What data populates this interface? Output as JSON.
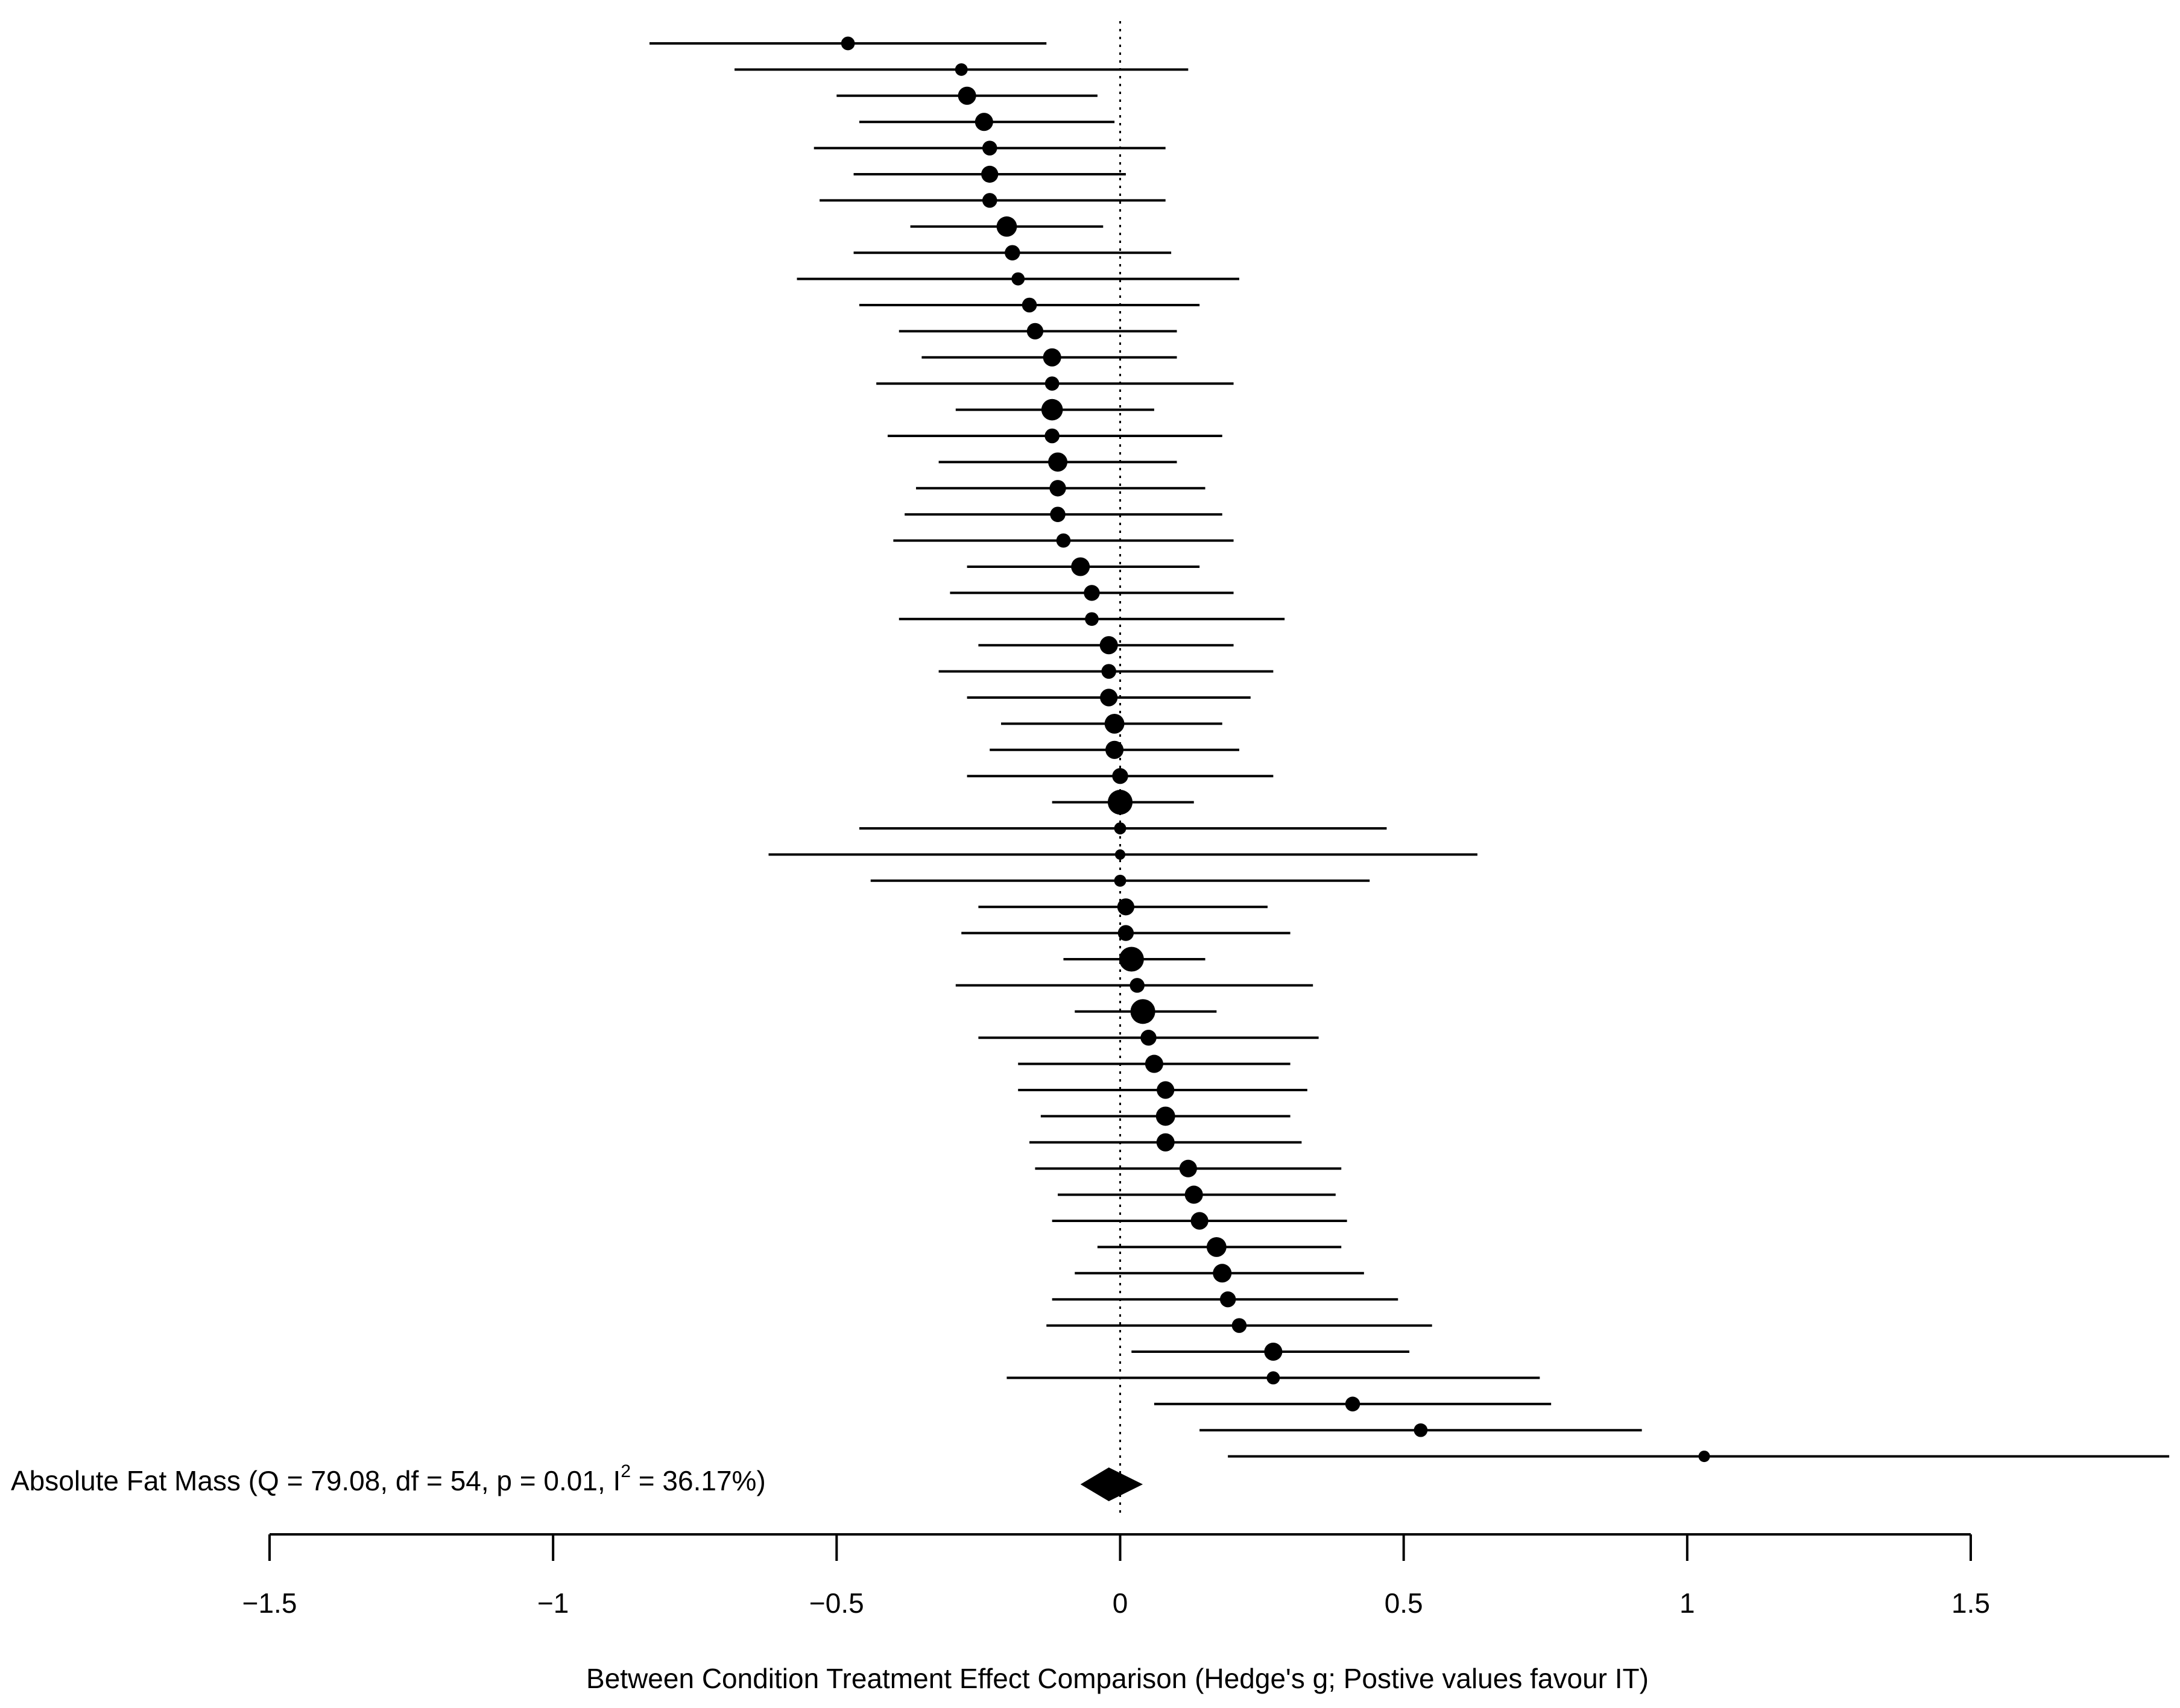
{
  "chart_data": {
    "type": "forest",
    "xlabel": "Between Condition Treatment Effect Comparison (Hedge's g; Postive values favour IT)",
    "xlim": [
      -1.5,
      1.5
    ],
    "xticks": [
      -1.5,
      -1,
      -0.5,
      0,
      0.5,
      1,
      1.5
    ],
    "xtick_labels": [
      "−1.5",
      "−1",
      "−0.5",
      "0",
      "0.5",
      "1",
      "1.5"
    ],
    "reference_line": 0,
    "summary": {
      "label_main": "Absolute Fat Mass (Q = 79.08, df = 54, p = 0.01, I",
      "label_sup": "2",
      "label_tail": " = 36.17%)",
      "estimate": -0.02,
      "ci": [
        -0.07,
        0.04
      ]
    },
    "studies": [
      {
        "est": -0.48,
        "lo": -0.83,
        "hi": -0.13,
        "w": 1.6
      },
      {
        "est": -0.28,
        "lo": -0.68,
        "hi": 0.12,
        "w": 1.4
      },
      {
        "est": -0.27,
        "lo": -0.5,
        "hi": -0.04,
        "w": 2.4
      },
      {
        "est": -0.24,
        "lo": -0.46,
        "hi": -0.01,
        "w": 2.4
      },
      {
        "est": -0.23,
        "lo": -0.54,
        "hi": 0.08,
        "w": 1.8
      },
      {
        "est": -0.23,
        "lo": -0.47,
        "hi": 0.01,
        "w": 2.2
      },
      {
        "est": -0.23,
        "lo": -0.53,
        "hi": 0.08,
        "w": 1.8
      },
      {
        "est": -0.2,
        "lo": -0.37,
        "hi": -0.03,
        "w": 2.8
      },
      {
        "est": -0.19,
        "lo": -0.47,
        "hi": 0.09,
        "w": 1.9
      },
      {
        "est": -0.18,
        "lo": -0.57,
        "hi": 0.21,
        "w": 1.5
      },
      {
        "est": -0.16,
        "lo": -0.46,
        "hi": 0.14,
        "w": 1.8
      },
      {
        "est": -0.15,
        "lo": -0.39,
        "hi": 0.1,
        "w": 2.1
      },
      {
        "est": -0.12,
        "lo": -0.35,
        "hi": 0.1,
        "w": 2.4
      },
      {
        "est": -0.12,
        "lo": -0.43,
        "hi": 0.2,
        "w": 1.7
      },
      {
        "est": -0.12,
        "lo": -0.29,
        "hi": 0.06,
        "w": 3.0
      },
      {
        "est": -0.12,
        "lo": -0.41,
        "hi": 0.18,
        "w": 1.8
      },
      {
        "est": -0.11,
        "lo": -0.32,
        "hi": 0.1,
        "w": 2.6
      },
      {
        "est": -0.11,
        "lo": -0.36,
        "hi": 0.15,
        "w": 2.1
      },
      {
        "est": -0.11,
        "lo": -0.38,
        "hi": 0.18,
        "w": 1.9
      },
      {
        "est": -0.1,
        "lo": -0.4,
        "hi": 0.2,
        "w": 1.7
      },
      {
        "est": -0.07,
        "lo": -0.27,
        "hi": 0.14,
        "w": 2.5
      },
      {
        "est": -0.05,
        "lo": -0.3,
        "hi": 0.2,
        "w": 2.0
      },
      {
        "est": -0.05,
        "lo": -0.39,
        "hi": 0.29,
        "w": 1.6
      },
      {
        "est": -0.02,
        "lo": -0.25,
        "hi": 0.2,
        "w": 2.4
      },
      {
        "est": -0.02,
        "lo": -0.32,
        "hi": 0.27,
        "w": 1.8
      },
      {
        "est": -0.02,
        "lo": -0.27,
        "hi": 0.23,
        "w": 2.3
      },
      {
        "est": -0.01,
        "lo": -0.21,
        "hi": 0.18,
        "w": 2.7
      },
      {
        "est": -0.01,
        "lo": -0.23,
        "hi": 0.21,
        "w": 2.4
      },
      {
        "est": 0.0,
        "lo": -0.27,
        "hi": 0.27,
        "w": 2.0
      },
      {
        "est": 0.0,
        "lo": -0.12,
        "hi": 0.13,
        "w": 3.6
      },
      {
        "est": 0.0,
        "lo": -0.46,
        "hi": 0.47,
        "w": 1.3
      },
      {
        "est": 0.0,
        "lo": -0.62,
        "hi": 0.63,
        "w": 1.0
      },
      {
        "est": 0.0,
        "lo": -0.44,
        "hi": 0.44,
        "w": 1.3
      },
      {
        "est": 0.01,
        "lo": -0.25,
        "hi": 0.26,
        "w": 2.2
      },
      {
        "est": 0.01,
        "lo": -0.28,
        "hi": 0.3,
        "w": 2.0
      },
      {
        "est": 0.02,
        "lo": -0.1,
        "hi": 0.15,
        "w": 3.6
      },
      {
        "est": 0.03,
        "lo": -0.29,
        "hi": 0.34,
        "w": 1.8
      },
      {
        "est": 0.04,
        "lo": -0.08,
        "hi": 0.17,
        "w": 3.6
      },
      {
        "est": 0.05,
        "lo": -0.25,
        "hi": 0.35,
        "w": 2.0
      },
      {
        "est": 0.06,
        "lo": -0.18,
        "hi": 0.3,
        "w": 2.4
      },
      {
        "est": 0.08,
        "lo": -0.18,
        "hi": 0.33,
        "w": 2.3
      },
      {
        "est": 0.08,
        "lo": -0.14,
        "hi": 0.3,
        "w": 2.6
      },
      {
        "est": 0.08,
        "lo": -0.16,
        "hi": 0.32,
        "w": 2.4
      },
      {
        "est": 0.12,
        "lo": -0.15,
        "hi": 0.39,
        "w": 2.3
      },
      {
        "est": 0.13,
        "lo": -0.11,
        "hi": 0.38,
        "w": 2.4
      },
      {
        "est": 0.14,
        "lo": -0.12,
        "hi": 0.4,
        "w": 2.3
      },
      {
        "est": 0.17,
        "lo": -0.04,
        "hi": 0.39,
        "w": 2.7
      },
      {
        "est": 0.18,
        "lo": -0.08,
        "hi": 0.43,
        "w": 2.5
      },
      {
        "est": 0.19,
        "lo": -0.12,
        "hi": 0.49,
        "w": 2.0
      },
      {
        "est": 0.21,
        "lo": -0.13,
        "hi": 0.55,
        "w": 1.8
      },
      {
        "est": 0.27,
        "lo": 0.02,
        "hi": 0.51,
        "w": 2.4
      },
      {
        "est": 0.27,
        "lo": -0.2,
        "hi": 0.74,
        "w": 1.5
      },
      {
        "est": 0.41,
        "lo": 0.06,
        "hi": 0.76,
        "w": 1.8
      },
      {
        "est": 0.53,
        "lo": 0.14,
        "hi": 0.92,
        "w": 1.6
      },
      {
        "est": 1.03,
        "lo": 0.19,
        "hi": 1.85,
        "w": 1.2
      }
    ]
  }
}
